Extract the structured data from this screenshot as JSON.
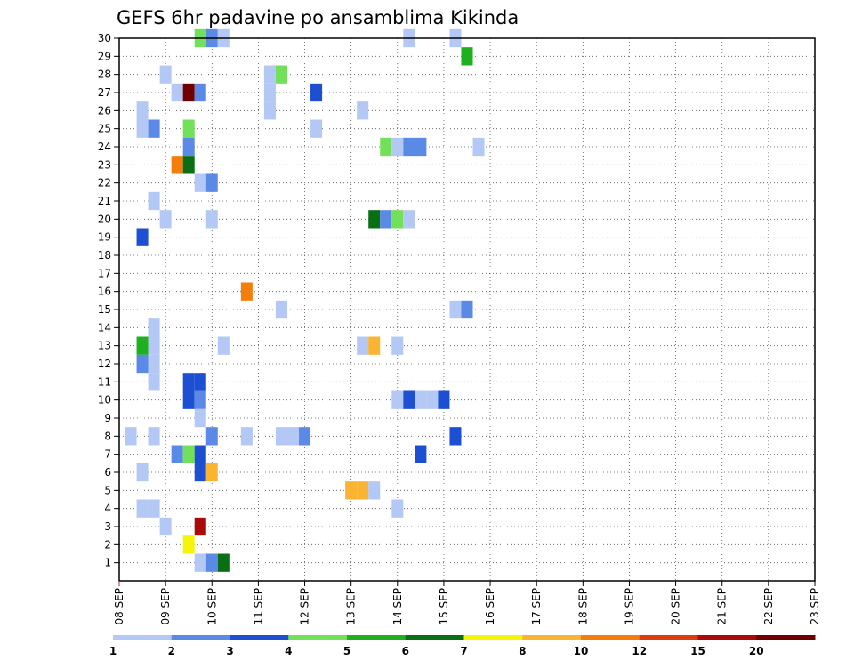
{
  "chart_data": {
    "type": "heatmap",
    "title": "GEFS 6hr padavine po ansamblima Kikinda",
    "x_labels": [
      "08 SEP",
      "09 SEP",
      "10 SEP",
      "11 SEP",
      "12 SEP",
      "13 SEP",
      "14 SEP",
      "15 SEP",
      "16 SEP",
      "17 SEP",
      "18 SEP",
      "19 SEP",
      "20 SEP",
      "21 SEP",
      "22 SEP",
      "23 SEP"
    ],
    "y_labels": [
      "1",
      "2",
      "3",
      "4",
      "5",
      "6",
      "7",
      "8",
      "9",
      "10",
      "11",
      "12",
      "13",
      "14",
      "15",
      "16",
      "17",
      "18",
      "19",
      "20",
      "21",
      "22",
      "23",
      "24",
      "25",
      "26",
      "27",
      "28",
      "29",
      "30"
    ],
    "ylim": [
      0,
      30
    ],
    "grid": true,
    "legend": "bottom colorbar",
    "colorbar": {
      "bins": [
        {
          "from": 1,
          "to": 2,
          "color": "#b4c8f5"
        },
        {
          "from": 2,
          "to": 3,
          "color": "#5a8ae6"
        },
        {
          "from": 3,
          "to": 4,
          "color": "#1c4fd2"
        },
        {
          "from": 4,
          "to": 5,
          "color": "#73e05a"
        },
        {
          "from": 5,
          "to": 6,
          "color": "#1fb01f"
        },
        {
          "from": 6,
          "to": 7,
          "color": "#0a6e14"
        },
        {
          "from": 7,
          "to": 8,
          "color": "#f5f50a"
        },
        {
          "from": 8,
          "to": 10,
          "color": "#fab432"
        },
        {
          "from": 10,
          "to": 12,
          "color": "#f57d0a"
        },
        {
          "from": 12,
          "to": 15,
          "color": "#dc3c0f"
        },
        {
          "from": 15,
          "to": 20,
          "color": "#aa0a0a"
        },
        {
          "from": 20,
          "to": null,
          "color": "#6e0000"
        }
      ],
      "tick_labels": [
        "1",
        "2",
        "3",
        "4",
        "5",
        "6",
        "7",
        "8",
        "10",
        "12",
        "15",
        "20"
      ]
    },
    "cells": [
      {
        "step": 7,
        "member": 30,
        "value": 4
      },
      {
        "step": 8,
        "member": 30,
        "value": 2
      },
      {
        "step": 9,
        "member": 30,
        "value": 1
      },
      {
        "step": 25,
        "member": 30,
        "value": 1
      },
      {
        "step": 29,
        "member": 30,
        "value": 1
      },
      {
        "step": 30,
        "member": 29,
        "value": 5
      },
      {
        "step": 4,
        "member": 28,
        "value": 1
      },
      {
        "step": 13,
        "member": 28,
        "value": 1
      },
      {
        "step": 14,
        "member": 28,
        "value": 4
      },
      {
        "step": 5,
        "member": 27,
        "value": 1
      },
      {
        "step": 6,
        "member": 27,
        "value": 20
      },
      {
        "step": 7,
        "member": 27,
        "value": 2
      },
      {
        "step": 13,
        "member": 27,
        "value": 1
      },
      {
        "step": 17,
        "member": 27,
        "value": 3
      },
      {
        "step": 2,
        "member": 26,
        "value": 1
      },
      {
        "step": 13,
        "member": 26,
        "value": 1
      },
      {
        "step": 21,
        "member": 26,
        "value": 1
      },
      {
        "step": 2,
        "member": 25,
        "value": 1
      },
      {
        "step": 3,
        "member": 25,
        "value": 2
      },
      {
        "step": 6,
        "member": 25,
        "value": 4
      },
      {
        "step": 17,
        "member": 25,
        "value": 1
      },
      {
        "step": 6,
        "member": 24,
        "value": 2
      },
      {
        "step": 23,
        "member": 24,
        "value": 4
      },
      {
        "step": 24,
        "member": 24,
        "value": 1
      },
      {
        "step": 25,
        "member": 24,
        "value": 2
      },
      {
        "step": 26,
        "member": 24,
        "value": 2
      },
      {
        "step": 31,
        "member": 24,
        "value": 1
      },
      {
        "step": 5,
        "member": 23,
        "value": 10
      },
      {
        "step": 6,
        "member": 23,
        "value": 6
      },
      {
        "step": 7,
        "member": 22,
        "value": 1
      },
      {
        "step": 8,
        "member": 22,
        "value": 2
      },
      {
        "step": 3,
        "member": 21,
        "value": 1
      },
      {
        "step": 4,
        "member": 20,
        "value": 1
      },
      {
        "step": 8,
        "member": 20,
        "value": 1
      },
      {
        "step": 22,
        "member": 20,
        "value": 6
      },
      {
        "step": 23,
        "member": 20,
        "value": 2
      },
      {
        "step": 24,
        "member": 20,
        "value": 4
      },
      {
        "step": 25,
        "member": 20,
        "value": 1
      },
      {
        "step": 2,
        "member": 19,
        "value": 3
      },
      {
        "step": 11,
        "member": 16,
        "value": 10
      },
      {
        "step": 14,
        "member": 15,
        "value": 1
      },
      {
        "step": 29,
        "member": 15,
        "value": 1
      },
      {
        "step": 30,
        "member": 15,
        "value": 2
      },
      {
        "step": 3,
        "member": 14,
        "value": 1
      },
      {
        "step": 2,
        "member": 13,
        "value": 5
      },
      {
        "step": 3,
        "member": 13,
        "value": 1
      },
      {
        "step": 9,
        "member": 13,
        "value": 1
      },
      {
        "step": 21,
        "member": 13,
        "value": 1
      },
      {
        "step": 22,
        "member": 13,
        "value": 8
      },
      {
        "step": 24,
        "member": 13,
        "value": 1
      },
      {
        "step": 2,
        "member": 12,
        "value": 2
      },
      {
        "step": 3,
        "member": 12,
        "value": 1
      },
      {
        "step": 3,
        "member": 11,
        "value": 1
      },
      {
        "step": 6,
        "member": 11,
        "value": 3
      },
      {
        "step": 7,
        "member": 11,
        "value": 3
      },
      {
        "step": 6,
        "member": 10,
        "value": 3
      },
      {
        "step": 7,
        "member": 10,
        "value": 2
      },
      {
        "step": 24,
        "member": 10,
        "value": 1
      },
      {
        "step": 25,
        "member": 10,
        "value": 3
      },
      {
        "step": 26,
        "member": 10,
        "value": 1
      },
      {
        "step": 27,
        "member": 10,
        "value": 1
      },
      {
        "step": 28,
        "member": 10,
        "value": 3
      },
      {
        "step": 7,
        "member": 9,
        "value": 1
      },
      {
        "step": 1,
        "member": 8,
        "value": 1
      },
      {
        "step": 3,
        "member": 8,
        "value": 1
      },
      {
        "step": 8,
        "member": 8,
        "value": 2
      },
      {
        "step": 11,
        "member": 8,
        "value": 1
      },
      {
        "step": 14,
        "member": 8,
        "value": 1
      },
      {
        "step": 15,
        "member": 8,
        "value": 1
      },
      {
        "step": 16,
        "member": 8,
        "value": 2
      },
      {
        "step": 29,
        "member": 8,
        "value": 3
      },
      {
        "step": 5,
        "member": 7,
        "value": 2
      },
      {
        "step": 6,
        "member": 7,
        "value": 4
      },
      {
        "step": 7,
        "member": 7,
        "value": 3
      },
      {
        "step": 26,
        "member": 7,
        "value": 3
      },
      {
        "step": 2,
        "member": 6,
        "value": 1
      },
      {
        "step": 7,
        "member": 6,
        "value": 3
      },
      {
        "step": 8,
        "member": 6,
        "value": 8
      },
      {
        "step": 20,
        "member": 5,
        "value": 8
      },
      {
        "step": 21,
        "member": 5,
        "value": 8
      },
      {
        "step": 22,
        "member": 5,
        "value": 1
      },
      {
        "step": 2,
        "member": 4,
        "value": 1
      },
      {
        "step": 3,
        "member": 4,
        "value": 1
      },
      {
        "step": 24,
        "member": 4,
        "value": 1
      },
      {
        "step": 4,
        "member": 3,
        "value": 1
      },
      {
        "step": 7,
        "member": 3,
        "value": 15
      },
      {
        "step": 6,
        "member": 2,
        "value": 7
      },
      {
        "step": 7,
        "member": 1,
        "value": 1
      },
      {
        "step": 8,
        "member": 1,
        "value": 2
      },
      {
        "step": 9,
        "member": 1,
        "value": 6
      }
    ]
  }
}
